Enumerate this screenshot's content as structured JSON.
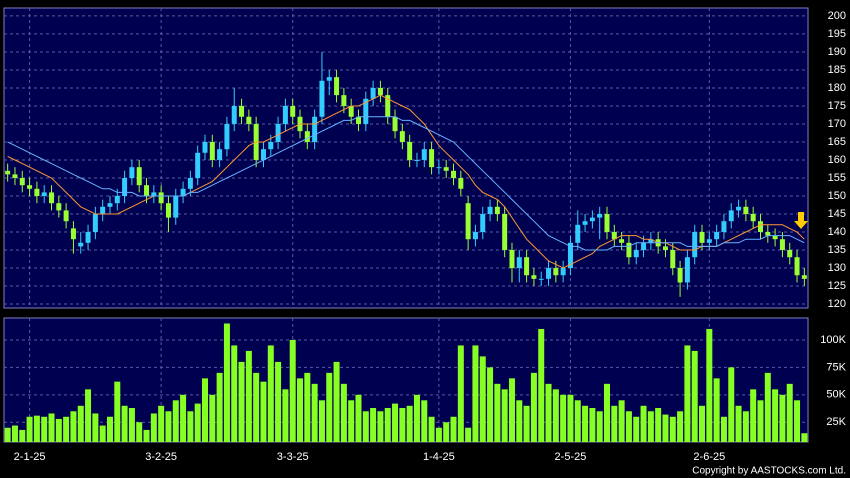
{
  "chart_data": [
    {
      "type": "candlestick",
      "categories": [
        null,
        null,
        null,
        "2-1-25",
        null,
        null,
        null,
        null,
        null,
        null,
        null,
        null,
        null,
        null,
        null,
        null,
        null,
        null,
        null,
        null,
        null,
        "3-2-25",
        null,
        null,
        null,
        null,
        null,
        null,
        null,
        null,
        null,
        null,
        null,
        null,
        null,
        null,
        null,
        null,
        null,
        "3-3-25",
        null,
        null,
        null,
        null,
        null,
        null,
        null,
        null,
        null,
        null,
        null,
        null,
        null,
        null,
        null,
        null,
        null,
        null,
        null,
        "1-4-25",
        null,
        null,
        null,
        null,
        null,
        null,
        null,
        null,
        null,
        null,
        null,
        null,
        null,
        null,
        null,
        null,
        null,
        "2-5-25",
        null,
        null,
        null,
        null,
        null,
        null,
        null,
        null,
        null,
        null,
        null,
        null,
        null,
        null,
        null,
        null,
        null,
        null,
        "2-6-25",
        null,
        null,
        null,
        null,
        null,
        null,
        null,
        null,
        null,
        null,
        null,
        null,
        null
      ],
      "open": [
        157,
        156,
        155,
        153,
        152,
        150,
        151,
        148,
        146,
        141,
        136,
        137,
        140,
        145,
        147,
        148,
        150,
        155,
        158,
        153,
        150,
        151,
        148,
        144,
        150,
        152,
        155,
        162,
        165,
        160,
        163,
        170,
        175,
        172,
        170,
        160,
        163,
        165,
        170,
        175,
        172,
        168,
        165,
        172,
        182,
        183,
        178,
        175,
        172,
        170,
        177,
        180,
        178,
        172,
        168,
        165,
        160,
        160,
        163,
        158,
        158,
        157,
        155,
        148,
        138,
        140,
        145,
        147,
        145,
        135,
        130,
        133,
        128,
        127,
        127,
        130,
        128,
        130,
        137,
        142,
        143,
        144,
        145,
        140,
        138,
        137,
        133,
        135,
        137,
        138,
        136,
        135,
        130,
        126,
        133,
        140,
        137,
        138,
        140,
        143,
        146,
        147,
        145,
        143,
        140,
        139,
        138,
        135,
        133,
        128
      ],
      "high": [
        159,
        158,
        157,
        155,
        154,
        153,
        153,
        150,
        148,
        143,
        140,
        142,
        147,
        149,
        150,
        152,
        157,
        160,
        160,
        155,
        153,
        153,
        150,
        152,
        154,
        157,
        164,
        167,
        167,
        165,
        172,
        180,
        177,
        174,
        172,
        165,
        167,
        172,
        177,
        177,
        174,
        170,
        174,
        190,
        185,
        185,
        180,
        177,
        174,
        179,
        182,
        182,
        180,
        174,
        170,
        167,
        162,
        165,
        165,
        160,
        160,
        159,
        157,
        150,
        142,
        147,
        149,
        149,
        147,
        137,
        135,
        135,
        130,
        129,
        132,
        132,
        132,
        139,
        146,
        145,
        146,
        147,
        147,
        142,
        140,
        139,
        137,
        139,
        140,
        140,
        138,
        137,
        132,
        135,
        142,
        142,
        140,
        142,
        145,
        148,
        149,
        149,
        147,
        145,
        142,
        141,
        140,
        137,
        135,
        130
      ],
      "low": [
        154,
        153,
        151,
        150,
        148,
        148,
        146,
        144,
        141,
        134,
        134,
        135,
        138,
        143,
        145,
        146,
        148,
        153,
        151,
        148,
        148,
        146,
        140,
        142,
        148,
        150,
        153,
        160,
        158,
        158,
        161,
        168,
        170,
        168,
        158,
        158,
        161,
        163,
        168,
        170,
        166,
        163,
        163,
        170,
        178,
        176,
        173,
        170,
        168,
        168,
        175,
        176,
        170,
        166,
        163,
        158,
        158,
        158,
        156,
        156,
        155,
        153,
        150,
        135,
        136,
        138,
        143,
        143,
        133,
        126,
        126,
        126,
        125,
        125,
        125,
        126,
        126,
        128,
        135,
        140,
        141,
        138,
        138,
        136,
        135,
        131,
        131,
        133,
        135,
        134,
        133,
        128,
        122,
        124,
        131,
        135,
        135,
        136,
        138,
        141,
        144,
        143,
        141,
        138,
        137,
        136,
        133,
        131,
        126,
        125
      ],
      "close": [
        156,
        155,
        153,
        152,
        150,
        151,
        148,
        146,
        143,
        138,
        137,
        140,
        145,
        147,
        148,
        150,
        155,
        158,
        153,
        150,
        151,
        148,
        144,
        150,
        152,
        155,
        162,
        165,
        160,
        163,
        170,
        175,
        172,
        170,
        160,
        163,
        165,
        170,
        175,
        172,
        168,
        165,
        172,
        182,
        183,
        178,
        175,
        172,
        170,
        177,
        180,
        178,
        172,
        168,
        165,
        160,
        160,
        163,
        158,
        158,
        157,
        155,
        152,
        138,
        140,
        145,
        147,
        145,
        135,
        130,
        133,
        128,
        127,
        127,
        130,
        128,
        130,
        137,
        142,
        143,
        144,
        145,
        140,
        138,
        137,
        133,
        135,
        137,
        138,
        136,
        135,
        130,
        126,
        133,
        140,
        137,
        138,
        140,
        143,
        146,
        147,
        145,
        143,
        140,
        139,
        138,
        135,
        133,
        128,
        127
      ],
      "series": [
        {
          "color": "#ff9933",
          "values": [
            161,
            160,
            159,
            158,
            157,
            156,
            155,
            153,
            151,
            149,
            147,
            146,
            145,
            145,
            145,
            145,
            146,
            147,
            148,
            149,
            150,
            150,
            150,
            150,
            150,
            151,
            152,
            153,
            154,
            156,
            158,
            160,
            162,
            164,
            165,
            165,
            166,
            167,
            168,
            169,
            170,
            170,
            170,
            171,
            172,
            173,
            174,
            175,
            175,
            176,
            177,
            178,
            177,
            176,
            175,
            174,
            172,
            170,
            167,
            164,
            162,
            160,
            158,
            156,
            153,
            151,
            150,
            149,
            147,
            144,
            141,
            138,
            136,
            134,
            132,
            131,
            130,
            131,
            132,
            133,
            134,
            136,
            137,
            138,
            139,
            139,
            139,
            138,
            138,
            137,
            137,
            136,
            135,
            135,
            135,
            136,
            136,
            136,
            137,
            138,
            139,
            140,
            141,
            142,
            142,
            142,
            142,
            141,
            140,
            138
          ]
        },
        {
          "color": "#66b3ff",
          "values": [
            165,
            164,
            163,
            162,
            161,
            160,
            159,
            158,
            157,
            156,
            155,
            154,
            153,
            152,
            152,
            151,
            151,
            151,
            150,
            150,
            150,
            150,
            150,
            150,
            150,
            151,
            151,
            152,
            153,
            154,
            155,
            156,
            157,
            158,
            159,
            160,
            161,
            162,
            163,
            164,
            165,
            166,
            167,
            168,
            169,
            170,
            171,
            171,
            172,
            172,
            172,
            172,
            172,
            172,
            171,
            171,
            170,
            169,
            168,
            167,
            166,
            165,
            163,
            161,
            159,
            157,
            155,
            153,
            151,
            149,
            147,
            145,
            143,
            141,
            139,
            138,
            137,
            136,
            136,
            135,
            135,
            135,
            135,
            136,
            136,
            136,
            137,
            137,
            137,
            137,
            137,
            137,
            137,
            136,
            136,
            136,
            136,
            136,
            137,
            137,
            137,
            138,
            138,
            138,
            139,
            139,
            139,
            139,
            138,
            137
          ]
        }
      ],
      "up_color": "#33ccff",
      "down_color": "#99ff33",
      "ylim": [
        118.9,
        202.2
      ],
      "yticks": [
        120,
        125,
        130,
        135,
        140,
        145,
        150,
        155,
        160,
        165,
        170,
        175,
        180,
        185,
        190,
        195,
        200
      ],
      "grid": true
    },
    {
      "type": "bar",
      "values": [
        20000,
        22000,
        18000,
        30000,
        31000,
        30000,
        33000,
        28000,
        30000,
        35000,
        40000,
        55000,
        33000,
        22000,
        30000,
        62000,
        40000,
        38000,
        25000,
        18000,
        33000,
        40000,
        35000,
        45000,
        50000,
        35000,
        42000,
        65000,
        50000,
        70000,
        115000,
        95000,
        80000,
        90000,
        70000,
        62000,
        95000,
        80000,
        55000,
        100000,
        65000,
        70000,
        60000,
        45000,
        70000,
        80000,
        60000,
        45000,
        50000,
        35000,
        38000,
        35000,
        38000,
        42000,
        38000,
        40000,
        50000,
        45000,
        30000,
        20000,
        25000,
        30000,
        95000,
        20000,
        95000,
        85000,
        75000,
        60000,
        55000,
        65000,
        45000,
        40000,
        70000,
        110000,
        60000,
        55000,
        50000,
        50000,
        45000,
        40000,
        38000,
        35000,
        60000,
        40000,
        45000,
        35000,
        30000,
        40000,
        35000,
        38000,
        32000,
        30000,
        35000,
        95000,
        90000,
        40000,
        110000,
        65000,
        30000,
        75000,
        40000,
        35000,
        55000,
        45000,
        70000,
        55000,
        50000,
        60000,
        45000,
        15000
      ],
      "color": "#88ff22",
      "ylim": [
        7000,
        120000
      ],
      "yticks": [
        {
          "value": 25000,
          "label": "25K"
        },
        {
          "value": 50000,
          "label": "50K"
        },
        {
          "value": 75000,
          "label": "75K"
        },
        {
          "value": 100000,
          "label": "100K"
        }
      ],
      "grid": true
    }
  ],
  "footer": {
    "copyright": "Copyright by AASTOCKS.com Ltd."
  }
}
